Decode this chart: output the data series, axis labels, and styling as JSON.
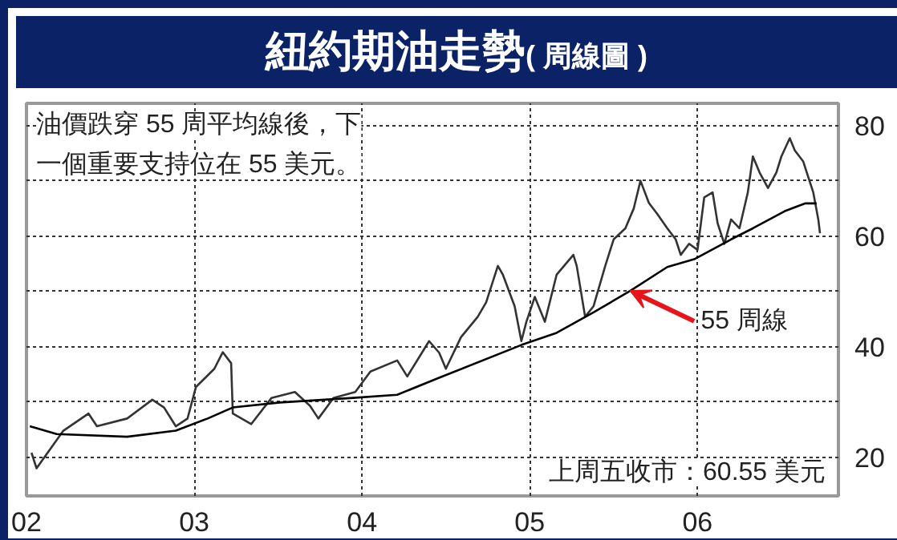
{
  "chart_data": {
    "type": "line",
    "title": "紐約期油走勢",
    "subtitle": "( 周線圖 )",
    "xlim": [
      2002.0,
      2006.84
    ],
    "xticks": [
      {
        "value": 2002,
        "label": "02"
      },
      {
        "value": 2003,
        "label": "03"
      },
      {
        "value": 2004,
        "label": "04"
      },
      {
        "value": 2005,
        "label": "05"
      },
      {
        "value": 2006,
        "label": "06"
      }
    ],
    "ylim": [
      13,
      84
    ],
    "yticks": [
      20,
      {
        "value": 30,
        "label": null
      },
      40,
      {
        "value": 50,
        "label": null
      },
      60,
      {
        "value": 70,
        "label": null
      },
      80
    ],
    "grid": true,
    "marker": "none",
    "series": [
      {
        "color": "#333333",
        "x": [
          2002.03,
          2002.06,
          2002.22,
          2002.37,
          2002.42,
          2002.6,
          2002.75,
          2002.82,
          2002.89,
          2002.96,
          2003.01,
          2003.12,
          2003.17,
          2003.22,
          2003.23,
          2003.34,
          2003.46,
          2003.6,
          2003.69,
          2003.74,
          2003.83,
          2003.96,
          2004.05,
          2004.21,
          2004.27,
          2004.4,
          2004.46,
          2004.5,
          2004.59,
          2004.69,
          2004.74,
          2004.81,
          2004.84,
          2004.91,
          2004.95,
          2004.98,
          2005.03,
          2005.09,
          2005.16,
          2005.26,
          2005.28,
          2005.33,
          2005.38,
          2005.45,
          2005.5,
          2005.57,
          2005.62,
          2005.66,
          2005.71,
          2005.76,
          2005.82,
          2005.87,
          2005.9,
          2005.95,
          2006.0,
          2006.04,
          2006.09,
          2006.12,
          2006.16,
          2006.2,
          2006.25,
          2006.3,
          2006.33,
          2006.37,
          2006.42,
          2006.47,
          2006.5,
          2006.55,
          2006.58,
          2006.63,
          2006.66,
          2006.69,
          2006.72,
          2006.73
        ],
        "values": [
          20.8,
          18,
          24.8,
          27.9,
          25.6,
          27,
          30.4,
          29,
          25.6,
          27,
          32.7,
          36,
          39,
          37,
          27.9,
          26,
          30.7,
          31.8,
          29.3,
          27,
          30.7,
          31.8,
          35.5,
          37.5,
          34.6,
          41,
          38.9,
          36,
          41.7,
          45.4,
          48,
          54.6,
          53,
          47.3,
          41,
          44.5,
          49,
          44.5,
          53,
          56.6,
          54.6,
          45.4,
          47.3,
          54.6,
          59.4,
          61.4,
          65,
          70,
          66,
          64,
          61.4,
          59.4,
          56.6,
          58.6,
          57.5,
          67,
          67.9,
          62.3,
          58.6,
          63,
          61.4,
          67.9,
          74.4,
          71.5,
          68.7,
          71.5,
          74.4,
          77.7,
          75.5,
          73.5,
          70.7,
          67.9,
          63,
          60.5
        ]
      },
      {
        "color": "#000000",
        "x": [
          2002.02,
          2002.18,
          2002.6,
          2002.89,
          2003.08,
          2003.23,
          2003.51,
          2003.93,
          2004.21,
          2004.43,
          2004.95,
          2005.16,
          2005.38,
          2005.6,
          2005.82,
          2005.98,
          2006.2,
          2006.33,
          2006.52,
          2006.64,
          2006.71
        ],
        "values": [
          25.6,
          24.2,
          23.7,
          24.8,
          27,
          29,
          29.9,
          30.7,
          31.3,
          34,
          40.3,
          42.5,
          46.2,
          50.1,
          54.4,
          55.8,
          59.4,
          61.4,
          64.5,
          65.9,
          65.9
        ]
      }
    ],
    "annotations": [
      "油價跌穿 55 周平均線後，下",
      "一個重要支持位在 55 美元。",
      {
        "text": "55 周線",
        "x": 2005.6,
        "y": 50.1
      },
      "上周五收市：60.55 美元"
    ]
  }
}
